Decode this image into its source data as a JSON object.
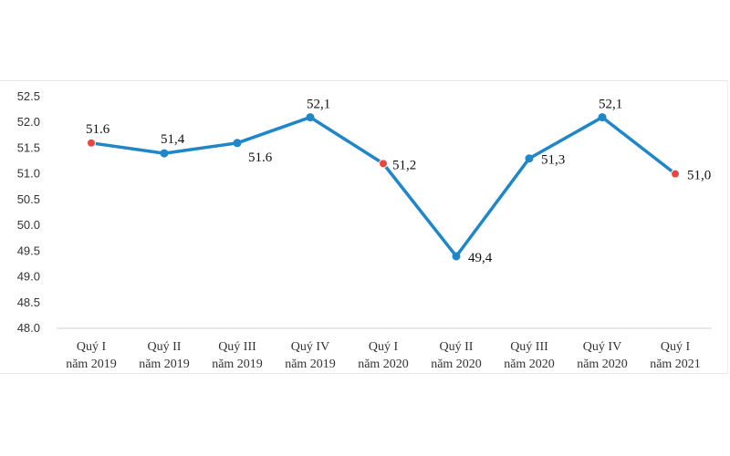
{
  "chart_data": {
    "type": "line",
    "categories": [
      [
        "Quý I",
        "năm 2019"
      ],
      [
        "Quý II",
        "năm 2019"
      ],
      [
        "Quý III",
        "năm 2019"
      ],
      [
        "Quý IV",
        "năm 2019"
      ],
      [
        "Quý I",
        "năm 2020"
      ],
      [
        "Quý II",
        "năm 2020"
      ],
      [
        "Quý III",
        "năm 2020"
      ],
      [
        "Quý IV",
        "năm 2020"
      ],
      [
        "Quý I",
        "năm 2021"
      ]
    ],
    "values": [
      51.6,
      51.4,
      51.6,
      52.1,
      51.2,
      49.4,
      51.3,
      52.1,
      51.0
    ],
    "data_labels": [
      "51.6",
      "51,4",
      "51.6",
      "52,1",
      "51,2",
      "49,4",
      "51,3",
      "52,1",
      "51,0"
    ],
    "y_ticks": [
      "52.5",
      "52.0",
      "51.5",
      "51.0",
      "50.5",
      "50.0",
      "49.5",
      "49.0",
      "48.5",
      "48.0"
    ],
    "ylim": [
      48.0,
      52.5
    ],
    "grid": false,
    "legend": "none",
    "line_color": "#1f86c8",
    "marker_color": "#1f86c8",
    "highlight_marker_color": "#e8473f",
    "highlight_indices": [
      0,
      4,
      8
    ]
  }
}
